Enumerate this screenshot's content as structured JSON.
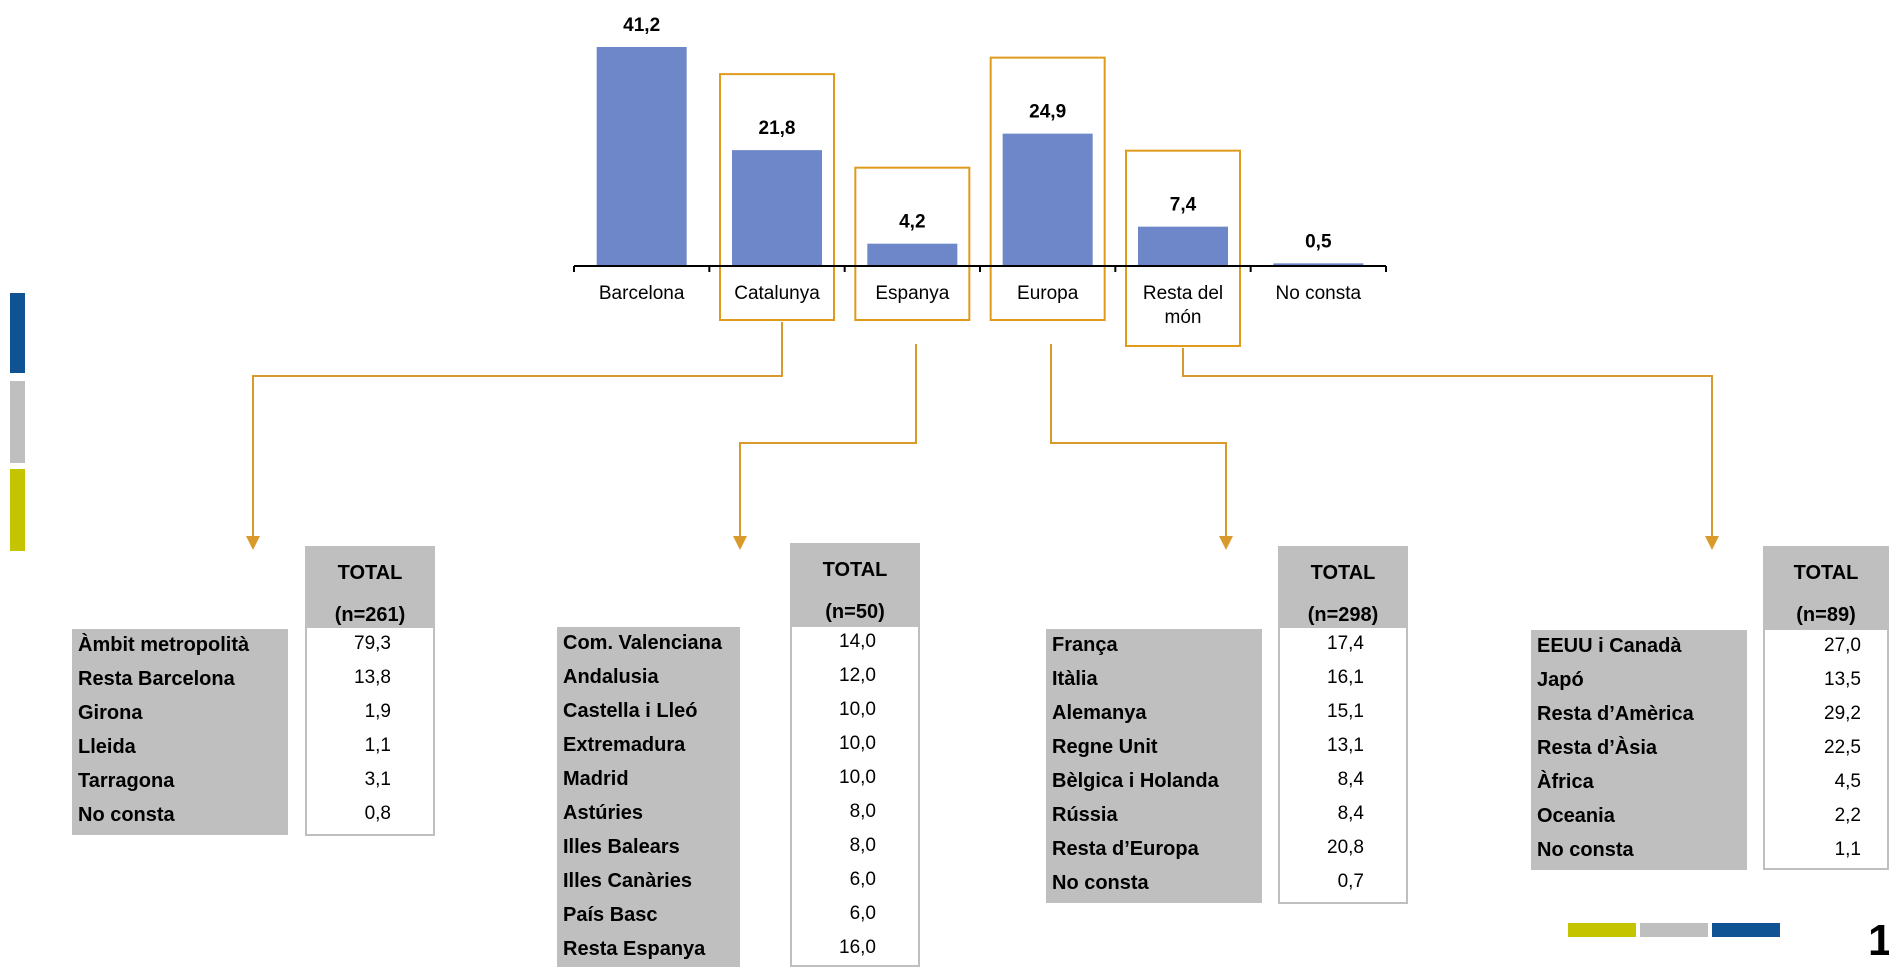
{
  "chart_data": {
    "type": "bar",
    "categories": [
      "Barcelona",
      "Catalunya",
      "Espanya",
      "Europa",
      "Resta del món",
      "No consta"
    ],
    "values": [
      41.2,
      21.8,
      4.2,
      24.9,
      7.4,
      0.5
    ],
    "value_labels": [
      "41,2",
      "21,8",
      "4,2",
      "24,9",
      "7,4",
      "0,5"
    ],
    "category_lines": [
      [
        "Barcelona"
      ],
      [
        "Catalunya"
      ],
      [
        "Espanya"
      ],
      [
        "Europa"
      ],
      [
        "Resta del",
        "món"
      ],
      [
        "No consta"
      ]
    ],
    "highlighted": [
      false,
      true,
      true,
      true,
      true,
      false
    ],
    "title": "",
    "xlabel": "",
    "ylabel": "",
    "ylim": [
      0,
      41.2
    ],
    "grid": false
  },
  "colors": {
    "bar": "#6d87c8",
    "highlight_box": "#e09a1c",
    "connector": "#d99a2b",
    "table_header": "#bfbfbf",
    "accent_blue": "#0f5394",
    "accent_gray": "#bfbfbf",
    "accent_yellow": "#c4c400"
  },
  "tables": [
    {
      "header": "TOTAL",
      "n": "(n=261)",
      "rows": [
        {
          "label": "Àmbit metropolità",
          "value": "79,3"
        },
        {
          "label": "Resta Barcelona",
          "value": "13,8"
        },
        {
          "label": "Girona",
          "value": "1,9"
        },
        {
          "label": "Lleida",
          "value": "1,1"
        },
        {
          "label": "Tarragona",
          "value": "3,1"
        },
        {
          "label": "No consta",
          "value": "0,8"
        }
      ]
    },
    {
      "header": "TOTAL",
      "n": "(n=50)",
      "rows": [
        {
          "label": "Com. Valenciana",
          "value": "14,0"
        },
        {
          "label": "Andalusia",
          "value": "12,0"
        },
        {
          "label": "Castella i Lleó",
          "value": "10,0"
        },
        {
          "label": "Extremadura",
          "value": "10,0"
        },
        {
          "label": "Madrid",
          "value": "10,0"
        },
        {
          "label": "Astúries",
          "value": "8,0"
        },
        {
          "label": "Illes Balears",
          "value": "8,0"
        },
        {
          "label": "Illes Canàries",
          "value": "6,0"
        },
        {
          "label": "País Basc",
          "value": "6,0"
        },
        {
          "label": "Resta Espanya",
          "value": "16,0"
        }
      ]
    },
    {
      "header": "TOTAL",
      "n": "(n=298)",
      "rows": [
        {
          "label": "França",
          "value": "17,4"
        },
        {
          "label": "Itàlia",
          "value": "16,1"
        },
        {
          "label": "Alemanya",
          "value": "15,1"
        },
        {
          "label": "Regne Unit",
          "value": "13,1"
        },
        {
          "label": "Bèlgica i Holanda",
          "value": "8,4"
        },
        {
          "label": "Rússia",
          "value": "8,4"
        },
        {
          "label": "Resta d’Europa",
          "value": "20,8"
        },
        {
          "label": "No consta",
          "value": "0,7"
        }
      ]
    },
    {
      "header": "TOTAL",
      "n": "(n=89)",
      "rows": [
        {
          "label": "EEUU i Canadà",
          "value": "27,0"
        },
        {
          "label": "Japó",
          "value": "13,5"
        },
        {
          "label": "Resta d’Amèrica",
          "value": "29,2"
        },
        {
          "label": "Resta d’Àsia",
          "value": "22,5"
        },
        {
          "label": "Àfrica",
          "value": "4,5"
        },
        {
          "label": "Oceania",
          "value": "2,2"
        },
        {
          "label": "No consta",
          "value": "1,1"
        }
      ]
    }
  ],
  "page_number": "1"
}
